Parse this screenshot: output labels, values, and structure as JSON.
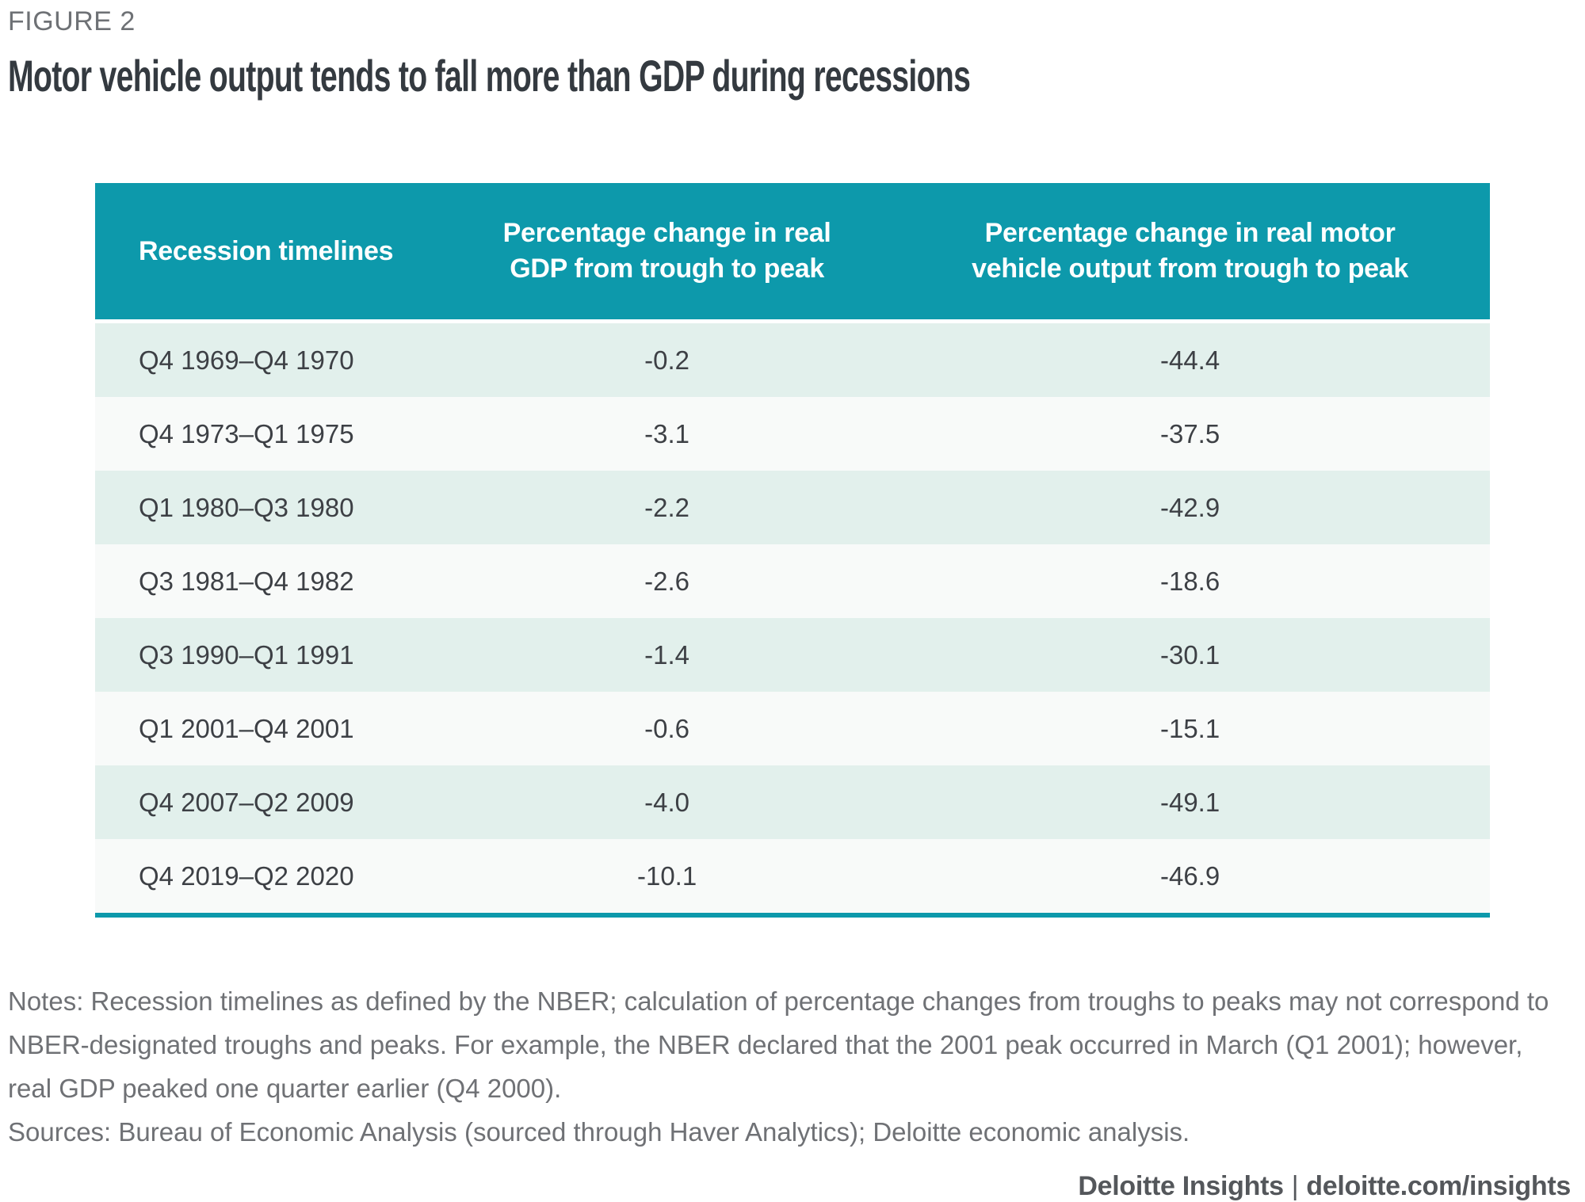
{
  "figure_label": "FIGURE 2",
  "title": "Motor vehicle output tends to fall more than GDP during recessions",
  "table": {
    "header": {
      "col1": "Recession timelines",
      "col2_line1": "Percentage change in real",
      "col2_line2": "GDP from trough to peak",
      "col3_line1": "Percentage change in real motor",
      "col3_line2": "vehicle output from trough to peak"
    },
    "rows": [
      {
        "timeline": "Q4 1969–Q4 1970",
        "gdp": "-0.2",
        "vehicle": "-44.4"
      },
      {
        "timeline": "Q4 1973–Q1 1975",
        "gdp": "-3.1",
        "vehicle": "-37.5"
      },
      {
        "timeline": "Q1 1980–Q3 1980",
        "gdp": "-2.2",
        "vehicle": "-42.9"
      },
      {
        "timeline": "Q3 1981–Q4 1982",
        "gdp": "-2.6",
        "vehicle": "-18.6"
      },
      {
        "timeline": "Q3 1990–Q1 1991",
        "gdp": "-1.4",
        "vehicle": "-30.1"
      },
      {
        "timeline": "Q1 2001–Q4 2001",
        "gdp": "-0.6",
        "vehicle": "-15.1"
      },
      {
        "timeline": "Q4 2007–Q2 2009",
        "gdp": "-4.0",
        "vehicle": "-49.1"
      },
      {
        "timeline": "Q4 2019–Q2 2020",
        "gdp": "-10.1",
        "vehicle": "-46.9"
      }
    ]
  },
  "chart_data": {
    "type": "table",
    "title": "Motor vehicle output tends to fall more than GDP during recessions",
    "columns": [
      "Recession timelines",
      "Percentage change in real GDP from trough to peak",
      "Percentage change in real motor vehicle output from trough to peak"
    ],
    "categories": [
      "Q4 1969–Q4 1970",
      "Q4 1973–Q1 1975",
      "Q1 1980–Q3 1980",
      "Q3 1981–Q4 1982",
      "Q3 1990–Q1 1991",
      "Q1 2001–Q4 2001",
      "Q4 2007–Q2 2009",
      "Q4 2019–Q2 2020"
    ],
    "series": [
      {
        "name": "Percentage change in real GDP from trough to peak",
        "values": [
          -0.2,
          -3.1,
          -2.2,
          -2.6,
          -1.4,
          -0.6,
          -4.0,
          -10.1
        ]
      },
      {
        "name": "Percentage change in real motor vehicle output from trough to peak",
        "values": [
          -44.4,
          -37.5,
          -42.9,
          -18.6,
          -30.1,
          -15.1,
          -49.1,
          -46.9
        ]
      }
    ]
  },
  "notes": "Notes: Recession timelines as defined by the NBER; calculation of percentage changes from troughs to peaks may not correspond to NBER-designated troughs and peaks. For example, the NBER declared that the 2001 peak occurred in March (Q1 2001); however, real GDP peaked one quarter earlier (Q4 2000).",
  "sources": "Sources: Bureau of Economic Analysis (sourced through Haver Analytics); Deloitte economic analysis.",
  "footer": {
    "brand": "Deloitte Insights",
    "separator": "|",
    "site": "deloitte.com/insights"
  },
  "colors": {
    "header_teal": "#0d99ab",
    "row_light_teal": "#e2f0ec",
    "row_off_white": "#f8faf9",
    "title_text": "#343a40",
    "body_text": "#3d4045",
    "notes_text": "#6f7175",
    "footer_text": "#54575b"
  }
}
